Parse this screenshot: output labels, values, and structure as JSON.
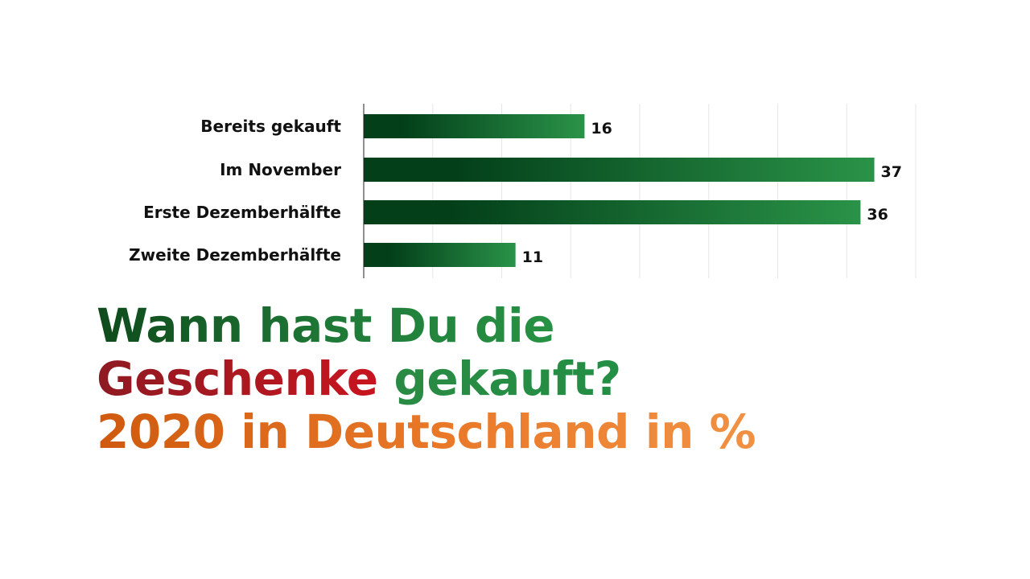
{
  "chart_data": {
    "type": "bar",
    "orientation": "horizontal",
    "categories": [
      "Bereits gekauft",
      "Im November",
      "Erste Dezemberhälfte",
      "Zweite Dezemberhälfte"
    ],
    "values": [
      16,
      37,
      36,
      11
    ],
    "xlim": [
      0,
      40
    ],
    "grid": true,
    "legend": "none",
    "bar_color_start": "#03401a",
    "bar_color_end": "#2a9348",
    "title_lines": [
      [
        {
          "text": "Wann hast Du die",
          "color": "#1f7a38"
        }
      ],
      [
        {
          "text": "Geschenke",
          "color": "#b5171f"
        },
        {
          "text": " gekauft?",
          "color": "#25903f"
        }
      ],
      [
        {
          "text": "2020 in Deutschland in %",
          "color": "#e8732a"
        }
      ]
    ]
  }
}
